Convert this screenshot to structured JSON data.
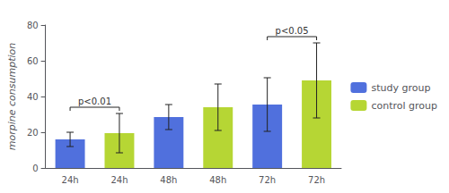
{
  "chart_data": {
    "type": "bar",
    "categories": [
      "24h",
      "24h",
      "48h",
      "48h",
      "72h",
      "72h"
    ],
    "series": [
      {
        "name": "study group",
        "values": [
          16,
          null,
          28.5,
          null,
          35.5,
          null
        ],
        "errors": [
          4,
          null,
          7,
          null,
          15,
          null
        ]
      },
      {
        "name": "control group",
        "values": [
          null,
          19.5,
          null,
          34,
          null,
          49
        ],
        "errors": [
          null,
          11,
          null,
          13,
          null,
          21
        ]
      }
    ],
    "ylabel": "morpine consumption",
    "ylim": [
      0,
      80
    ],
    "yticks": [
      0,
      20,
      40,
      60,
      80
    ],
    "grid": false,
    "legend": "right",
    "annotations": [
      {
        "text": "p<0.01",
        "bars": [
          0,
          1
        ]
      },
      {
        "text": "p<0.05",
        "bars": [
          4,
          5
        ]
      }
    ]
  }
}
